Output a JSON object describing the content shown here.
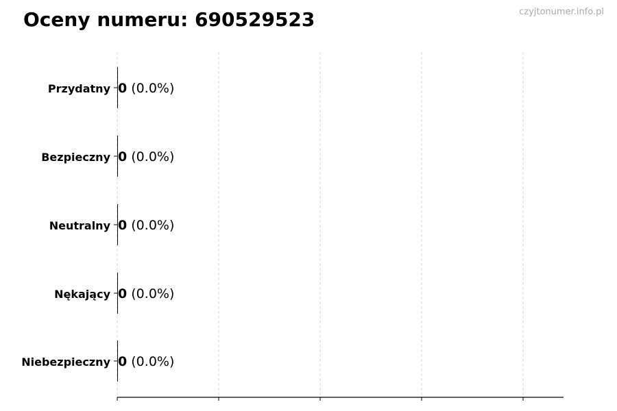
{
  "watermark": "czyjtonumer.info.pl",
  "chart_data": {
    "type": "bar",
    "orientation": "horizontal",
    "title": "Oceny numeru: 690529523",
    "categories": [
      "Przydatny",
      "Bezpieczny",
      "Neutralny",
      "Nękający",
      "Niebezpieczny"
    ],
    "values": [
      0,
      0,
      0,
      0,
      0
    ],
    "value_labels": [
      {
        "count": "0",
        "percent": "(0.0%)"
      },
      {
        "count": "0",
        "percent": "(0.0%)"
      },
      {
        "count": "0",
        "percent": "(0.0%)"
      },
      {
        "count": "0",
        "percent": "(0.0%)"
      },
      {
        "count": "0",
        "percent": "(0.0%)"
      }
    ],
    "xlabel": "",
    "ylabel": "",
    "grid": "vertical dashed",
    "bar_color": "#000000",
    "grid_color": "#cccccc"
  }
}
